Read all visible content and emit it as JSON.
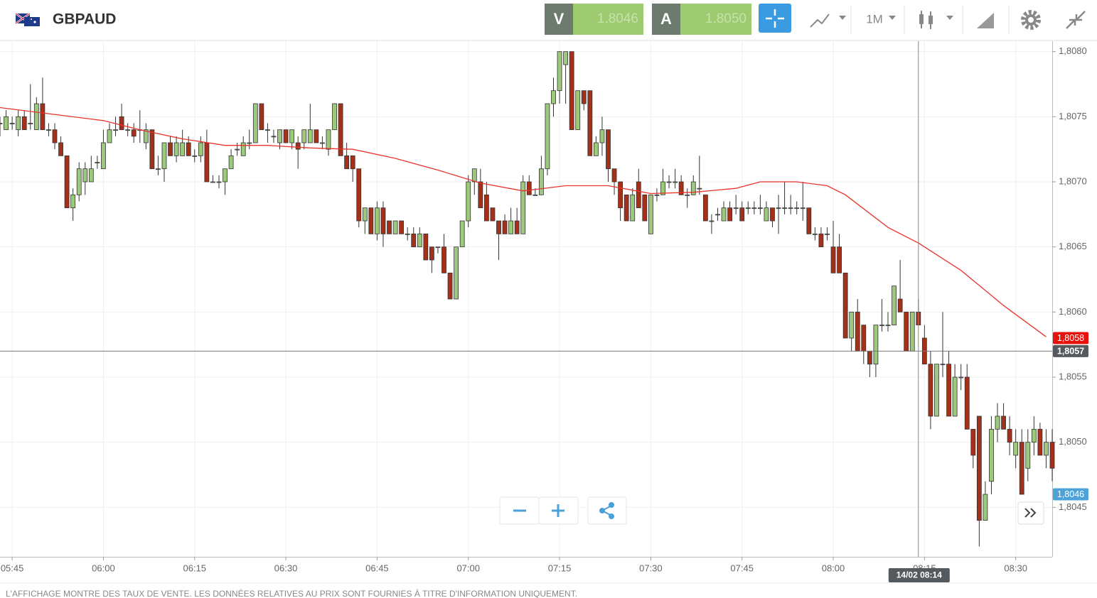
{
  "header": {
    "symbol": "GBPAUD",
    "sell": {
      "label": "V",
      "price": "1.8046"
    },
    "buy": {
      "label": "A",
      "price": "1.8050"
    },
    "timeframe": "1M"
  },
  "chart_data": {
    "type": "candlestick",
    "up_color": "#9dc97c",
    "down_color": "#a5301a",
    "x": [
      "05:43",
      "05:44",
      "05:45",
      "05:46",
      "05:47",
      "05:48",
      "05:49",
      "05:50",
      "05:51",
      "05:52",
      "05:53",
      "05:54",
      "05:55",
      "05:56",
      "05:57",
      "05:58",
      "05:59",
      "06:00",
      "06:01",
      "06:02",
      "06:03",
      "06:04",
      "06:05",
      "06:06",
      "06:07",
      "06:08",
      "06:09",
      "06:10",
      "06:11",
      "06:12",
      "06:13",
      "06:14",
      "06:15",
      "06:16",
      "06:17",
      "06:18",
      "06:19",
      "06:20",
      "06:21",
      "06:22",
      "06:23",
      "06:24",
      "06:25",
      "06:26",
      "06:27",
      "06:28",
      "06:29",
      "06:30",
      "06:31",
      "06:32",
      "06:33",
      "06:34",
      "06:35",
      "06:36",
      "06:37",
      "06:38",
      "06:39",
      "06:40",
      "06:41",
      "06:42",
      "06:43",
      "06:44",
      "06:45",
      "06:46",
      "06:47",
      "06:48",
      "06:49",
      "06:50",
      "06:51",
      "06:52",
      "06:53",
      "06:54",
      "06:55",
      "06:56",
      "06:57",
      "06:58",
      "06:59",
      "07:00",
      "07:01",
      "07:02",
      "07:03",
      "07:04",
      "07:05",
      "07:06",
      "07:07",
      "07:08",
      "07:09",
      "07:10",
      "07:11",
      "07:12",
      "07:13",
      "07:14",
      "07:15",
      "07:16",
      "07:17",
      "07:18",
      "07:19",
      "07:20",
      "07:21",
      "07:22",
      "07:23",
      "07:24",
      "07:25",
      "07:26",
      "07:27",
      "07:28",
      "07:29",
      "07:30",
      "07:31",
      "07:32",
      "07:33",
      "07:34",
      "07:35",
      "07:36",
      "07:37",
      "07:38",
      "07:39",
      "07:40",
      "07:41",
      "07:42",
      "07:43",
      "07:44",
      "07:45",
      "07:46",
      "07:47",
      "07:48",
      "07:49",
      "07:50",
      "07:51",
      "07:52",
      "07:53",
      "07:54",
      "07:55",
      "07:56",
      "07:57",
      "07:58",
      "07:59",
      "08:00",
      "08:01",
      "08:02",
      "08:03",
      "08:04",
      "08:05",
      "08:06",
      "08:07",
      "08:08",
      "08:09",
      "08:10",
      "08:11",
      "08:12",
      "08:13",
      "08:14",
      "08:15",
      "08:16",
      "08:17",
      "08:18",
      "08:19",
      "08:20",
      "08:21",
      "08:22",
      "08:23",
      "08:24",
      "08:25",
      "08:26",
      "08:27",
      "08:28",
      "08:29",
      "08:30",
      "08:31",
      "08:32",
      "08:33",
      "08:34",
      "08:35",
      "08:36"
    ],
    "ohlc": [
      [
        1.80745,
        1.8075,
        1.80735,
        1.80745
      ],
      [
        1.8074,
        1.80755,
        1.8074,
        1.8075
      ],
      [
        1.80745,
        1.8075,
        1.8074,
        1.80745
      ],
      [
        1.8074,
        1.80755,
        1.80735,
        1.8075
      ],
      [
        1.8075,
        1.80755,
        1.8074,
        1.8074
      ],
      [
        1.80745,
        1.80775,
        1.8074,
        1.80745
      ],
      [
        1.8074,
        1.80765,
        1.8074,
        1.8076
      ],
      [
        1.8076,
        1.8078,
        1.8074,
        1.8074
      ],
      [
        1.8074,
        1.80745,
        1.80735,
        1.8074
      ],
      [
        1.8074,
        1.80745,
        1.80725,
        1.8073
      ],
      [
        1.8073,
        1.80735,
        1.8072,
        1.8072
      ],
      [
        1.8072,
        1.8072,
        1.8068,
        1.8068
      ],
      [
        1.8068,
        1.80695,
        1.8067,
        1.8069
      ],
      [
        1.8069,
        1.80715,
        1.80685,
        1.8071
      ],
      [
        1.807,
        1.80715,
        1.8069,
        1.8071
      ],
      [
        1.807,
        1.8072,
        1.807,
        1.8071
      ],
      [
        1.80715,
        1.8072,
        1.8071,
        1.80715
      ],
      [
        1.8071,
        1.8074,
        1.8071,
        1.8073
      ],
      [
        1.8073,
        1.80745,
        1.8073,
        1.8074
      ],
      [
        1.8074,
        1.8075,
        1.80735,
        1.8074
      ],
      [
        1.8075,
        1.8076,
        1.8074,
        1.8074
      ],
      [
        1.8074,
        1.80745,
        1.80735,
        1.8074
      ],
      [
        1.8074,
        1.80745,
        1.8073,
        1.80735
      ],
      [
        1.8074,
        1.80755,
        1.8073,
        1.8074
      ],
      [
        1.8073,
        1.80745,
        1.80725,
        1.8074
      ],
      [
        1.8074,
        1.8074,
        1.8071,
        1.8071
      ],
      [
        1.8071,
        1.8072,
        1.80705,
        1.8071
      ],
      [
        1.8071,
        1.8073,
        1.807,
        1.8073
      ],
      [
        1.8073,
        1.80735,
        1.8072,
        1.8072
      ],
      [
        1.8072,
        1.80735,
        1.80715,
        1.8073
      ],
      [
        1.8072,
        1.8074,
        1.8072,
        1.8073
      ],
      [
        1.8073,
        1.80735,
        1.8072,
        1.8072
      ],
      [
        1.8072,
        1.80725,
        1.80715,
        1.8072
      ],
      [
        1.8072,
        1.80735,
        1.80715,
        1.8073
      ],
      [
        1.8073,
        1.8074,
        1.807,
        1.807
      ],
      [
        1.807,
        1.80705,
        1.807,
        1.807
      ],
      [
        1.807,
        1.80705,
        1.80695,
        1.807
      ],
      [
        1.807,
        1.8071,
        1.8069,
        1.8071
      ],
      [
        1.8071,
        1.80725,
        1.8071,
        1.8072
      ],
      [
        1.80725,
        1.8073,
        1.8072,
        1.80725
      ],
      [
        1.8072,
        1.80735,
        1.8072,
        1.8073
      ],
      [
        1.8073,
        1.8074,
        1.80725,
        1.8073
      ],
      [
        1.8073,
        1.8076,
        1.8073,
        1.8076
      ],
      [
        1.8076,
        1.8076,
        1.8074,
        1.8074
      ],
      [
        1.8074,
        1.80745,
        1.8073,
        1.8074
      ],
      [
        1.80735,
        1.8074,
        1.8073,
        1.80735
      ],
      [
        1.8073,
        1.8074,
        1.80725,
        1.8074
      ],
      [
        1.8074,
        1.8074,
        1.8073,
        1.8073
      ],
      [
        1.8073,
        1.8074,
        1.80725,
        1.8074
      ],
      [
        1.8073,
        1.80735,
        1.8071,
        1.80725
      ],
      [
        1.8073,
        1.8074,
        1.80725,
        1.8074
      ],
      [
        1.8073,
        1.8076,
        1.8073,
        1.8074
      ],
      [
        1.8074,
        1.8074,
        1.8073,
        1.8073
      ],
      [
        1.8073,
        1.80735,
        1.80725,
        1.8073
      ],
      [
        1.80725,
        1.8074,
        1.8072,
        1.8074
      ],
      [
        1.8074,
        1.8076,
        1.8074,
        1.8076
      ],
      [
        1.8076,
        1.8076,
        1.8072,
        1.8072
      ],
      [
        1.8072,
        1.8073,
        1.8071,
        1.8071
      ],
      [
        1.8072,
        1.8072,
        1.807,
        1.8071
      ],
      [
        1.8071,
        1.8071,
        1.80665,
        1.8067
      ],
      [
        1.8067,
        1.8068,
        1.8066,
        1.8068
      ],
      [
        1.8068,
        1.8068,
        1.8066,
        1.8066
      ],
      [
        1.8066,
        1.80685,
        1.80655,
        1.8068
      ],
      [
        1.8068,
        1.80685,
        1.8065,
        1.8066
      ],
      [
        1.8067,
        1.8067,
        1.8066,
        1.8066
      ],
      [
        1.8066,
        1.8067,
        1.8066,
        1.8067
      ],
      [
        1.8067,
        1.8067,
        1.8066,
        1.8066
      ],
      [
        1.8066,
        1.80665,
        1.80655,
        1.8066
      ],
      [
        1.8066,
        1.80665,
        1.8065,
        1.8065
      ],
      [
        1.8065,
        1.80665,
        1.8065,
        1.8066
      ],
      [
        1.8066,
        1.8066,
        1.8064,
        1.8064
      ],
      [
        1.8065,
        1.8065,
        1.8063,
        1.8064
      ],
      [
        1.8065,
        1.8065,
        1.80645,
        1.8065
      ],
      [
        1.8065,
        1.8066,
        1.8063,
        1.8063
      ],
      [
        1.8063,
        1.8063,
        1.8061,
        1.8061
      ],
      [
        1.8061,
        1.8065,
        1.8061,
        1.8065
      ],
      [
        1.8065,
        1.8067,
        1.8065,
        1.8067
      ],
      [
        1.8067,
        1.80705,
        1.80665,
        1.807
      ],
      [
        1.807,
        1.8071,
        1.8069,
        1.8071
      ],
      [
        1.807,
        1.8071,
        1.8068,
        1.8068
      ],
      [
        1.8069,
        1.807,
        1.8067,
        1.8067
      ],
      [
        1.8068,
        1.8068,
        1.8067,
        1.8067
      ],
      [
        1.8067,
        1.8067,
        1.8064,
        1.8066
      ],
      [
        1.8067,
        1.80675,
        1.8066,
        1.8066
      ],
      [
        1.8066,
        1.8068,
        1.8066,
        1.8067
      ],
      [
        1.8067,
        1.8068,
        1.8066,
        1.8066
      ],
      [
        1.8066,
        1.80705,
        1.8066,
        1.807
      ],
      [
        1.807,
        1.80705,
        1.8069,
        1.8069
      ],
      [
        1.8069,
        1.80695,
        1.8069,
        1.8069
      ],
      [
        1.8069,
        1.8072,
        1.8069,
        1.8071
      ],
      [
        1.8071,
        1.8076,
        1.80705,
        1.8076
      ],
      [
        1.8076,
        1.8078,
        1.8075,
        1.8077
      ],
      [
        1.8077,
        1.808,
        1.8076,
        1.808
      ],
      [
        1.8079,
        1.808,
        1.8076,
        1.808
      ],
      [
        1.808,
        1.808,
        1.8074,
        1.8074
      ],
      [
        1.8074,
        1.8077,
        1.8074,
        1.8077
      ],
      [
        1.8077,
        1.8077,
        1.80755,
        1.8076
      ],
      [
        1.8077,
        1.8077,
        1.8072,
        1.8072
      ],
      [
        1.8072,
        1.80735,
        1.8072,
        1.8073
      ],
      [
        1.8073,
        1.8075,
        1.8072,
        1.8074
      ],
      [
        1.8074,
        1.8074,
        1.807,
        1.8071
      ],
      [
        1.8071,
        1.8071,
        1.8069,
        1.807
      ],
      [
        1.807,
        1.807,
        1.8067,
        1.8068
      ],
      [
        1.8069,
        1.8069,
        1.8067,
        1.8067
      ],
      [
        1.8067,
        1.80695,
        1.8067,
        1.8069
      ],
      [
        1.807,
        1.8071,
        1.8068,
        1.8068
      ],
      [
        1.8069,
        1.8069,
        1.8067,
        1.8067
      ],
      [
        1.8066,
        1.8069,
        1.8066,
        1.8069
      ],
      [
        1.8069,
        1.80695,
        1.80685,
        1.8069
      ],
      [
        1.8069,
        1.8071,
        1.8069,
        1.807
      ],
      [
        1.807,
        1.80705,
        1.80695,
        1.807
      ],
      [
        1.807,
        1.8071,
        1.80695,
        1.807
      ],
      [
        1.807,
        1.80705,
        1.8069,
        1.8069
      ],
      [
        1.8069,
        1.80695,
        1.8068,
        1.8069
      ],
      [
        1.8069,
        1.80705,
        1.8069,
        1.807
      ],
      [
        1.80695,
        1.8072,
        1.8069,
        1.80695
      ],
      [
        1.8069,
        1.8069,
        1.8067,
        1.8067
      ],
      [
        1.8067,
        1.80675,
        1.8066,
        1.8067
      ],
      [
        1.80675,
        1.8068,
        1.8067,
        1.80675
      ],
      [
        1.8067,
        1.80685,
        1.8067,
        1.8068
      ],
      [
        1.8068,
        1.80685,
        1.8067,
        1.8067
      ],
      [
        1.8068,
        1.8069,
        1.80675,
        1.8068
      ],
      [
        1.8068,
        1.80685,
        1.8067,
        1.8067
      ],
      [
        1.8068,
        1.80685,
        1.80675,
        1.8068
      ],
      [
        1.8068,
        1.80685,
        1.80675,
        1.8068
      ],
      [
        1.8068,
        1.8069,
        1.80675,
        1.8068
      ],
      [
        1.8067,
        1.80685,
        1.8067,
        1.8068
      ],
      [
        1.8068,
        1.8068,
        1.80665,
        1.8067
      ],
      [
        1.8068,
        1.8069,
        1.8066,
        1.8068
      ],
      [
        1.8068,
        1.807,
        1.80675,
        1.8068
      ],
      [
        1.8068,
        1.8069,
        1.80675,
        1.8068
      ],
      [
        1.8068,
        1.80685,
        1.80675,
        1.8068
      ],
      [
        1.8068,
        1.807,
        1.8067,
        1.8068
      ],
      [
        1.8068,
        1.8068,
        1.8066,
        1.8066
      ],
      [
        1.8066,
        1.80665,
        1.80655,
        1.8066
      ],
      [
        1.8066,
        1.80665,
        1.8065,
        1.8065
      ],
      [
        1.8066,
        1.80665,
        1.80655,
        1.8066
      ],
      [
        1.8065,
        1.8067,
        1.8063,
        1.8063
      ],
      [
        1.8065,
        1.8066,
        1.8063,
        1.8063
      ],
      [
        1.8063,
        1.8063,
        1.8058,
        1.8058
      ],
      [
        1.8058,
        1.806,
        1.8057,
        1.806
      ],
      [
        1.806,
        1.8061,
        1.8057,
        1.8057
      ],
      [
        1.8059,
        1.8059,
        1.8056,
        1.8057
      ],
      [
        1.8057,
        1.8057,
        1.8055,
        1.8056
      ],
      [
        1.8056,
        1.8059,
        1.8055,
        1.8059
      ],
      [
        1.8059,
        1.8061,
        1.80585,
        1.8059
      ],
      [
        1.8059,
        1.806,
        1.80585,
        1.8059
      ],
      [
        1.8059,
        1.8062,
        1.8059,
        1.8062
      ],
      [
        1.8061,
        1.8064,
        1.806,
        1.806
      ],
      [
        1.806,
        1.806,
        1.8057,
        1.8057
      ],
      [
        1.8057,
        1.806,
        1.8057,
        1.806
      ],
      [
        1.806,
        1.8061,
        1.8059,
        1.8059
      ],
      [
        1.8058,
        1.8059,
        1.8056,
        1.8056
      ],
      [
        1.8056,
        1.8057,
        1.8051,
        1.8052
      ],
      [
        1.8052,
        1.8056,
        1.8052,
        1.8056
      ],
      [
        1.8056,
        1.806,
        1.8055,
        1.8056
      ],
      [
        1.8056,
        1.8057,
        1.8052,
        1.8052
      ],
      [
        1.8052,
        1.8056,
        1.8052,
        1.8055
      ],
      [
        1.8055,
        1.8056,
        1.8054,
        1.8055
      ],
      [
        1.8055,
        1.8056,
        1.8051,
        1.8051
      ],
      [
        1.8051,
        1.8051,
        1.8048,
        1.8049
      ],
      [
        1.8052,
        1.8052,
        1.8042,
        1.8044
      ],
      [
        1.8044,
        1.8047,
        1.8044,
        1.8046
      ],
      [
        1.8047,
        1.8052,
        1.8046,
        1.8051
      ],
      [
        1.8051,
        1.8053,
        1.805,
        1.8052
      ],
      [
        1.8052,
        1.8053,
        1.8051,
        1.8051
      ],
      [
        1.8051,
        1.8052,
        1.8049,
        1.805
      ],
      [
        1.8049,
        1.8051,
        1.8048,
        1.805
      ],
      [
        1.805,
        1.8051,
        1.8046,
        1.8046
      ],
      [
        1.8048,
        1.8051,
        1.8047,
        1.805
      ],
      [
        1.805,
        1.8052,
        1.8049,
        1.8051
      ],
      [
        1.8051,
        1.80515,
        1.8049,
        1.8049
      ],
      [
        1.8049,
        1.8051,
        1.8048,
        1.805
      ],
      [
        1.805,
        1.8051,
        1.8047,
        1.8048
      ]
    ],
    "ma": {
      "color": "#e8332b",
      "x": [
        "05:43",
        "06:00",
        "06:06",
        "06:13",
        "06:20",
        "06:27",
        "06:34",
        "06:41",
        "06:48",
        "06:55",
        "07:02",
        "07:09",
        "07:16",
        "07:23",
        "07:30",
        "07:37",
        "07:44",
        "07:48",
        "07:54",
        "07:59",
        "08:02",
        "08:09",
        "08:14",
        "08:21",
        "08:28",
        "08:35"
      ],
      "values": [
        1.80757,
        1.80747,
        1.8074,
        1.80733,
        1.80728,
        1.80728,
        1.80726,
        1.80725,
        1.80718,
        1.80709,
        1.80699,
        1.80693,
        1.80697,
        1.80697,
        1.80691,
        1.80692,
        1.80695,
        1.807,
        1.807,
        1.80697,
        1.8069,
        1.80665,
        1.80653,
        1.80632,
        1.80605,
        1.80581
      ]
    },
    "xlim": [
      "05:43",
      "08:36"
    ],
    "xticks": [
      "05:45",
      "06:00",
      "06:15",
      "06:30",
      "06:45",
      "07:00",
      "07:15",
      "07:30",
      "07:45",
      "08:00",
      "08:15",
      "08:30"
    ],
    "ylim": [
      1.80412,
      1.80808
    ],
    "yticks": [
      {
        "value": 1.808,
        "label": "1,8080"
      },
      {
        "value": 1.8075,
        "label": "1,8075"
      },
      {
        "value": 1.807,
        "label": "1,8070"
      },
      {
        "value": 1.8065,
        "label": "1,8065"
      },
      {
        "value": 1.806,
        "label": "1,8060"
      },
      {
        "value": 1.8055,
        "label": "1,8055"
      },
      {
        "value": 1.805,
        "label": "1,8050"
      },
      {
        "value": 1.8045,
        "label": "1,8045"
      }
    ],
    "grid": true,
    "price_markers": [
      {
        "value": 1.8058,
        "label": "1,8058",
        "color": "#e8120c"
      },
      {
        "value": 1.8046,
        "label": "1,8046",
        "color": "#4ba3d9"
      }
    ],
    "crosshair": {
      "x": "08:14",
      "label": "14/02 08:14",
      "y": {
        "value": 1.8057,
        "label": "1,8057"
      },
      "color": "#555a5e"
    }
  },
  "footer": {
    "disclaimer": "L'AFFICHAGE MONTRE DES TAUX DE VENTE. LES DONNÉES RELATIVES AU PRIX SONT FOURNIES À TITRE D'INFORMATION UNIQUEMENT."
  }
}
